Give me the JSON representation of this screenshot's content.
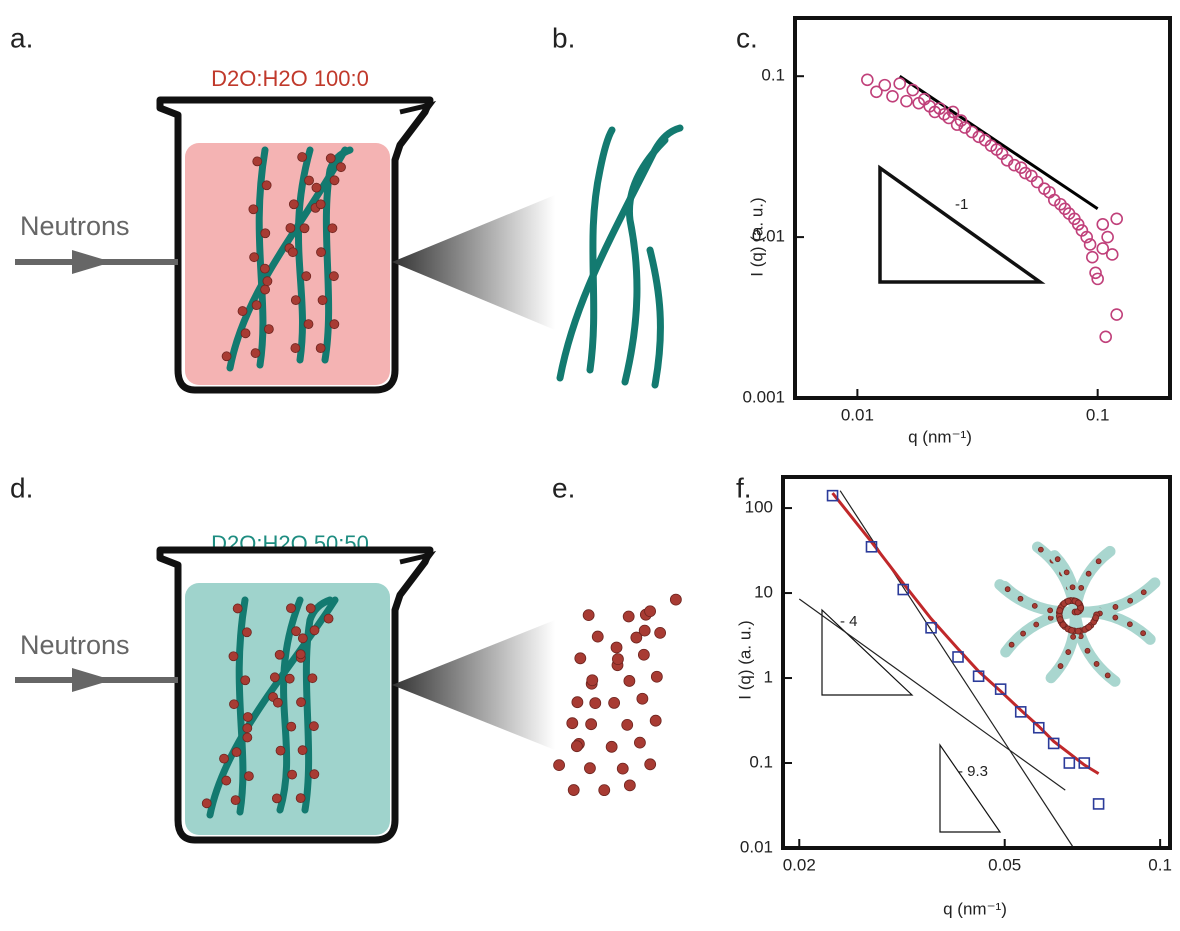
{
  "panels": [
    "a.",
    "b.",
    "c.",
    "d.",
    "e.",
    "f."
  ],
  "panel_a": {
    "label": "D2O:H2O 100:0",
    "beam": "Neutrons"
  },
  "panel_d": {
    "label": "D2O:H2O 50:50",
    "beam": "Neutrons"
  },
  "chart_data": [
    {
      "type": "scatter",
      "xlabel": "q (nm⁻¹)",
      "ylabel": "I (q) (a. u.)",
      "xlog": true,
      "ylog": true,
      "xlim": [
        0.0055,
        0.2
      ],
      "ylim": [
        0.001,
        0.23
      ],
      "xticks": [
        0.01,
        0.1
      ],
      "yticks": [
        0.001,
        0.01,
        0.1
      ],
      "annotations": [
        "-1"
      ],
      "series": [
        {
          "marker": "circle",
          "color": "#c0407a",
          "x": [
            0.011,
            0.012,
            0.013,
            0.014,
            0.015,
            0.016,
            0.017,
            0.018,
            0.019,
            0.02,
            0.021,
            0.022,
            0.023,
            0.024,
            0.025,
            0.026,
            0.027,
            0.028,
            0.03,
            0.032,
            0.034,
            0.036,
            0.038,
            0.04,
            0.042,
            0.045,
            0.048,
            0.05,
            0.053,
            0.056,
            0.06,
            0.063,
            0.066,
            0.07,
            0.073,
            0.076,
            0.08,
            0.083,
            0.086,
            0.09,
            0.093,
            0.095,
            0.098,
            0.1,
            0.105,
            0.11,
            0.115,
            0.12,
            0.108,
            0.12,
            0.105
          ],
          "values": [
            0.095,
            0.08,
            0.088,
            0.075,
            0.09,
            0.07,
            0.082,
            0.068,
            0.072,
            0.065,
            0.06,
            0.063,
            0.058,
            0.055,
            0.06,
            0.05,
            0.053,
            0.048,
            0.045,
            0.042,
            0.04,
            0.037,
            0.035,
            0.033,
            0.03,
            0.028,
            0.027,
            0.025,
            0.024,
            0.022,
            0.02,
            0.019,
            0.017,
            0.016,
            0.015,
            0.014,
            0.013,
            0.012,
            0.011,
            0.01,
            0.009,
            0.0075,
            0.006,
            0.0055,
            0.0085,
            0.01,
            0.0078,
            0.013,
            0.0024,
            0.0033,
            0.012
          ]
        },
        {
          "marker": "line",
          "color": "#000000",
          "width": 3,
          "x": [
            0.015,
            0.1
          ],
          "values": [
            0.1,
            0.015
          ]
        }
      ]
    },
    {
      "type": "scatter",
      "xlabel": "q (nm⁻¹)",
      "ylabel": "I (q) (a. u.)",
      "xlog": true,
      "ylog": true,
      "xlim": [
        0.0186,
        0.1045
      ],
      "ylim": [
        0.01,
        232
      ],
      "xticks": [
        0.02,
        0.05,
        0.1
      ],
      "yticks": [
        0.01,
        0.1,
        1,
        10,
        100
      ],
      "annotations": [
        "- 4",
        "- 9.3"
      ],
      "series": [
        {
          "marker": "square",
          "color": "#2b3b9a",
          "x": [
            0.0232,
            0.0276,
            0.0318,
            0.036,
            0.0406,
            0.0445,
            0.0491,
            0.0537,
            0.0582,
            0.0622,
            0.0667,
            0.0713,
            0.076
          ],
          "values": [
            140,
            35,
            11,
            3.9,
            1.77,
            1.05,
            0.74,
            0.4,
            0.26,
            0.17,
            0.1,
            0.1,
            0.033
          ]
        },
        {
          "marker": "line",
          "color": "#c0282a",
          "width": 3,
          "x": [
            0.0232,
            0.0276,
            0.0318,
            0.036,
            0.0406,
            0.0445,
            0.0491,
            0.0537,
            0.0582,
            0.0622,
            0.0667,
            0.0713,
            0.076
          ],
          "values": [
            150,
            40,
            13,
            5,
            2.2,
            1.2,
            0.7,
            0.42,
            0.27,
            0.18,
            0.13,
            0.095,
            0.075
          ]
        },
        {
          "marker": "line",
          "color": "#222222",
          "width": 1.2,
          "x": [
            0.02,
            0.0655
          ],
          "values": [
            8.5,
            0.048
          ]
        },
        {
          "marker": "line",
          "color": "#222222",
          "width": 1.2,
          "x": [
            0.024,
            0.068
          ],
          "values": [
            160,
            0.01
          ]
        }
      ]
    }
  ]
}
